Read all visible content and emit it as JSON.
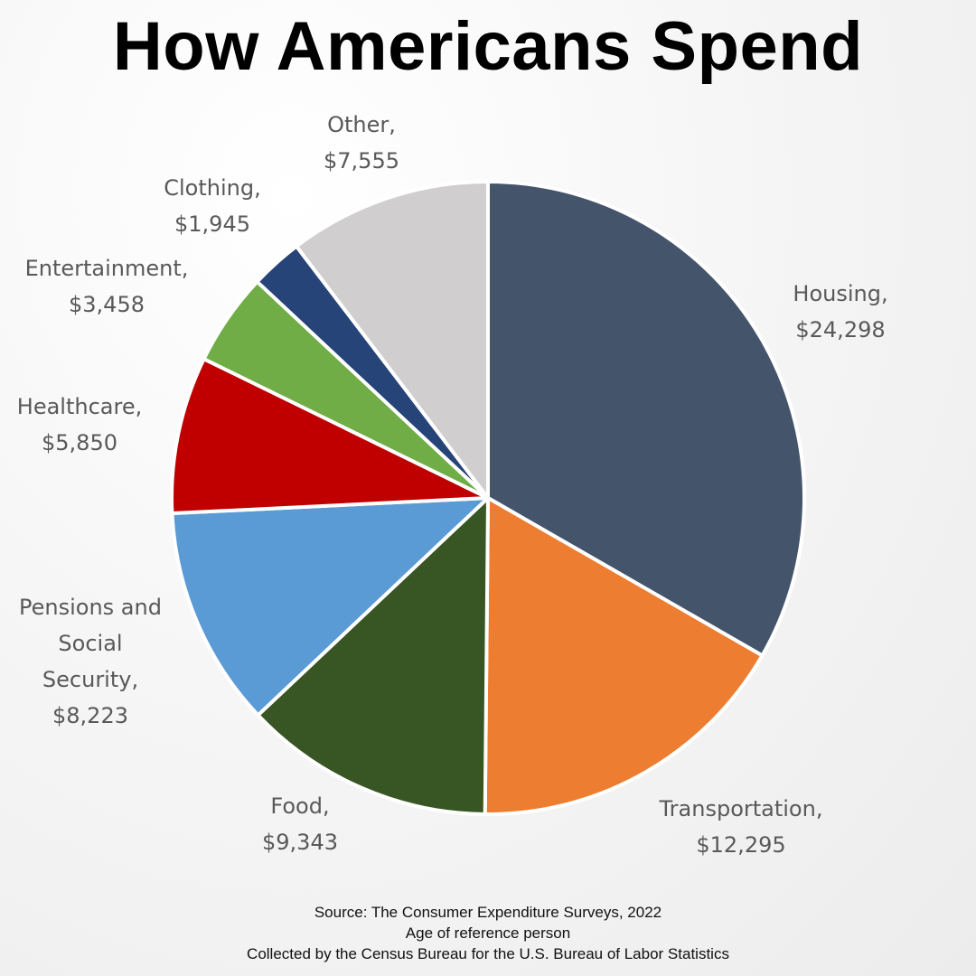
{
  "chart_data": {
    "type": "pie",
    "title": "How Americans Spend",
    "slices": [
      {
        "label": [
          "Housing,",
          "$24,298"
        ],
        "value": 24298,
        "color": "#44546A"
      },
      {
        "label": [
          "Transportation,",
          "$12,295"
        ],
        "value": 12295,
        "color": "#ED7D31"
      },
      {
        "label": [
          "Food,",
          "$9,343"
        ],
        "value": 9343,
        "color": "#375623"
      },
      {
        "label": [
          "Pensions and",
          "Social",
          "Security,",
          "$8,223"
        ],
        "value": 8223,
        "color": "#5B9BD5"
      },
      {
        "label": [
          "Healthcare,",
          "$5,850"
        ],
        "value": 5850,
        "color": "#C00000"
      },
      {
        "label": [
          "Entertainment,",
          "$3,458"
        ],
        "value": 3458,
        "color": "#70AD47"
      },
      {
        "label": [
          "Clothing,",
          "$1,945"
        ],
        "value": 1945,
        "color": "#264478"
      },
      {
        "label": [
          "Other,",
          "$7,555"
        ],
        "value": 7555,
        "color": "#D0CECE"
      }
    ]
  },
  "source": {
    "line1": "Source: The Consumer Expenditure Surveys, 2022",
    "line2": "Age of reference person",
    "line3": "Collected by the Census Bureau for the U.S. Bureau of Labor Statistics"
  }
}
